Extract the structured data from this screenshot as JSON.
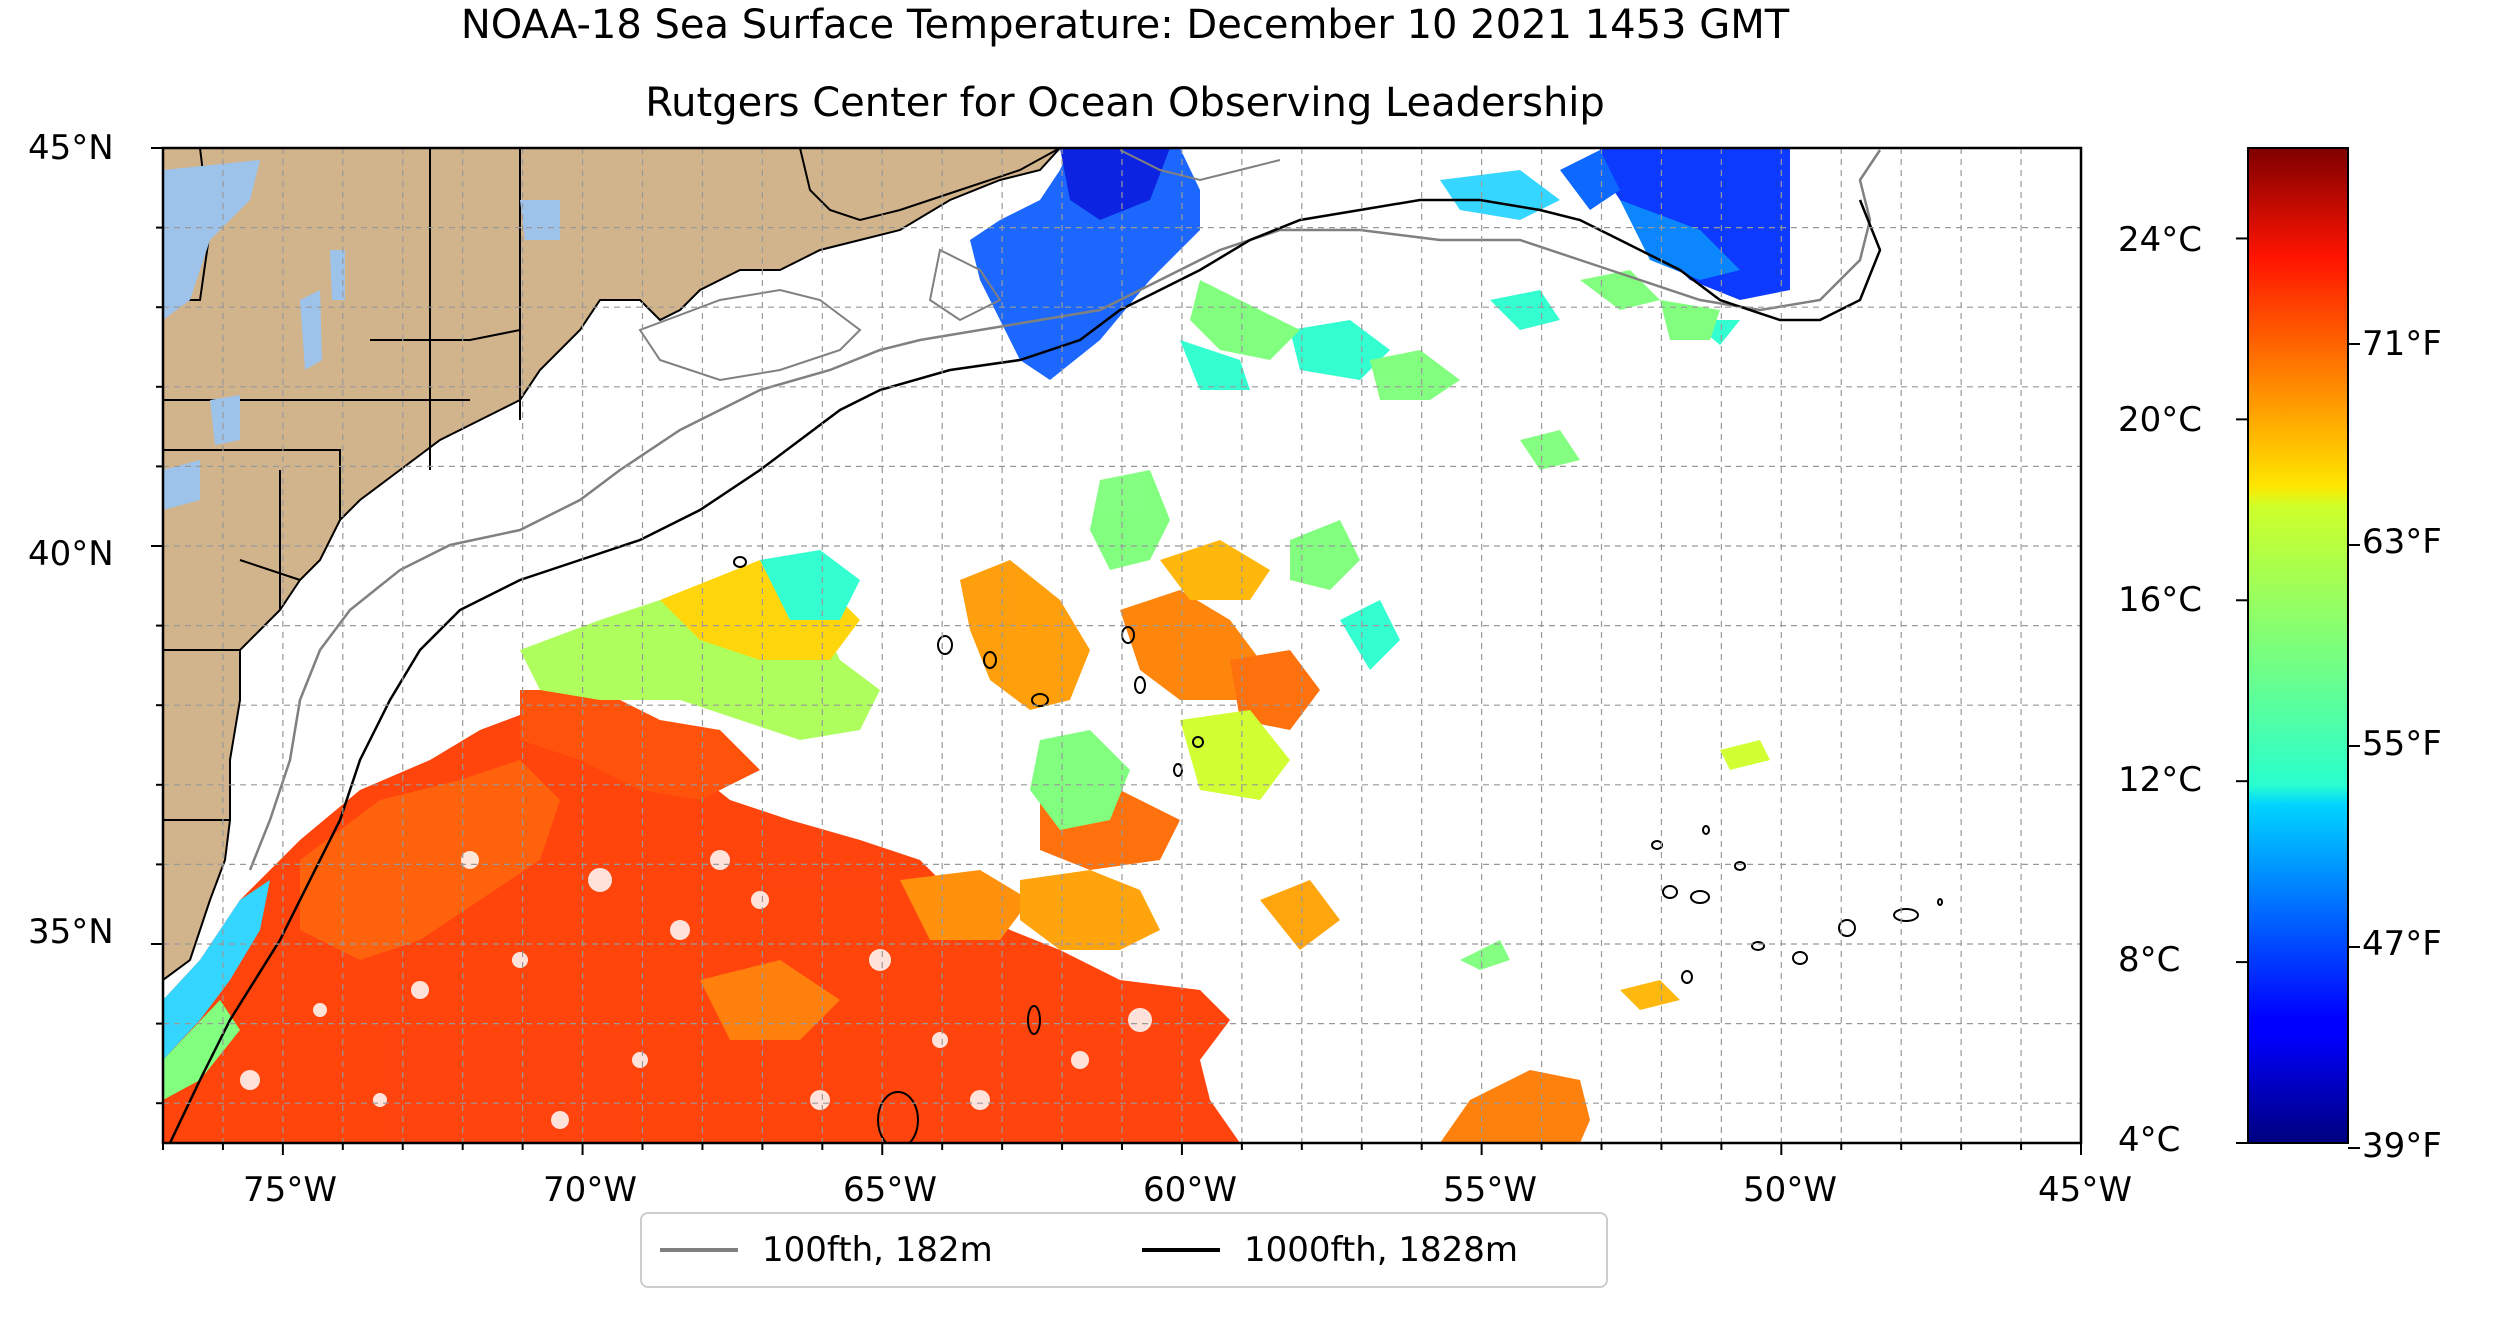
{
  "title": "NOAA-18 Sea Surface Temperature: December 10 2021 1453 GMT",
  "subtitle": "Rutgers Center for Ocean Observing Leadership",
  "map": {
    "lon_range": [
      -77,
      -45
    ],
    "lat_range": [
      32.5,
      45
    ],
    "x_ticks": [
      "75°W",
      "70°W",
      "65°W",
      "60°W",
      "55°W",
      "50°W",
      "45°W"
    ],
    "y_ticks": [
      "45°N",
      "40°N",
      "35°N"
    ],
    "gridlines": "dashed",
    "land_color": "#d2b48c",
    "lake_color": "#9ec3ea",
    "missing_data_color": "#ffffff"
  },
  "colorbar": {
    "colormap": "jet",
    "range_c": [
      4,
      26
    ],
    "celsius_ticks": [
      "24°C",
      "20°C",
      "16°C",
      "12°C",
      "8°C",
      "4°C"
    ],
    "fahrenheit_ticks": [
      "71°F",
      "63°F",
      "55°F",
      "47°F",
      "39°F"
    ]
  },
  "legend": {
    "items": [
      {
        "label": "100fth, 182m",
        "color": "#808080"
      },
      {
        "label": "1000fth, 1828m",
        "color": "#000000"
      }
    ]
  }
}
